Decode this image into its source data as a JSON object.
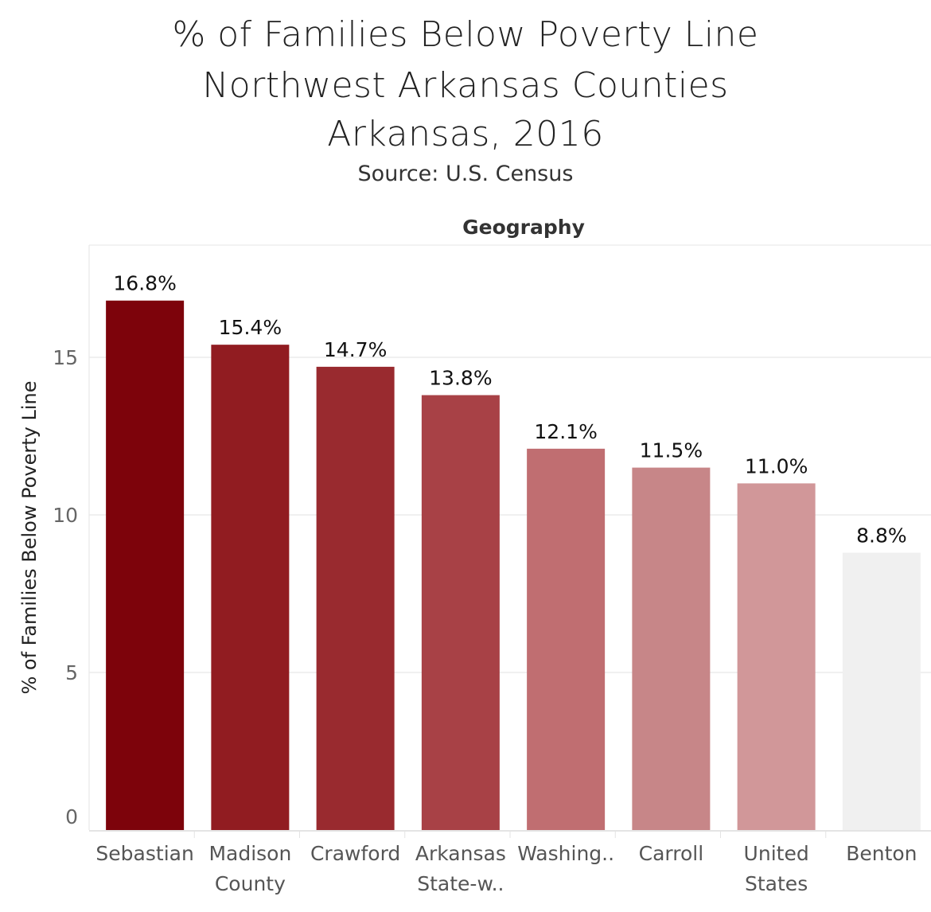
{
  "titles": {
    "line1": "% of Families Below Poverty Line",
    "line2": "Northwest Arkansas Counties",
    "line3": "Arkansas, 2016",
    "source": "Source: U.S. Census"
  },
  "chart_data": {
    "type": "bar",
    "header": "Geography",
    "ylabel": "% of Families Below Poverty Line",
    "ylim": [
      0,
      18
    ],
    "yticks": [
      0,
      5,
      10,
      15
    ],
    "grid": true,
    "categories": [
      [
        "Sebastian"
      ],
      [
        "Madison",
        "County"
      ],
      [
        "Crawford"
      ],
      [
        "Arkansas",
        "State-w.."
      ],
      [
        "Washing.."
      ],
      [
        "Carroll"
      ],
      [
        "United",
        "States"
      ],
      [
        "Benton"
      ]
    ],
    "values": [
      16.8,
      15.4,
      14.7,
      13.8,
      12.1,
      11.5,
      11.0,
      8.8
    ],
    "labels": [
      "16.8%",
      "15.4%",
      "14.7%",
      "13.8%",
      "12.1%",
      "11.5%",
      "11.0%",
      "8.8%"
    ],
    "colors": [
      "#7d030b",
      "#911c21",
      "#992a2f",
      "#a84146",
      "#c06e71",
      "#c78688",
      "#d19799",
      "#f0f0f0"
    ]
  }
}
